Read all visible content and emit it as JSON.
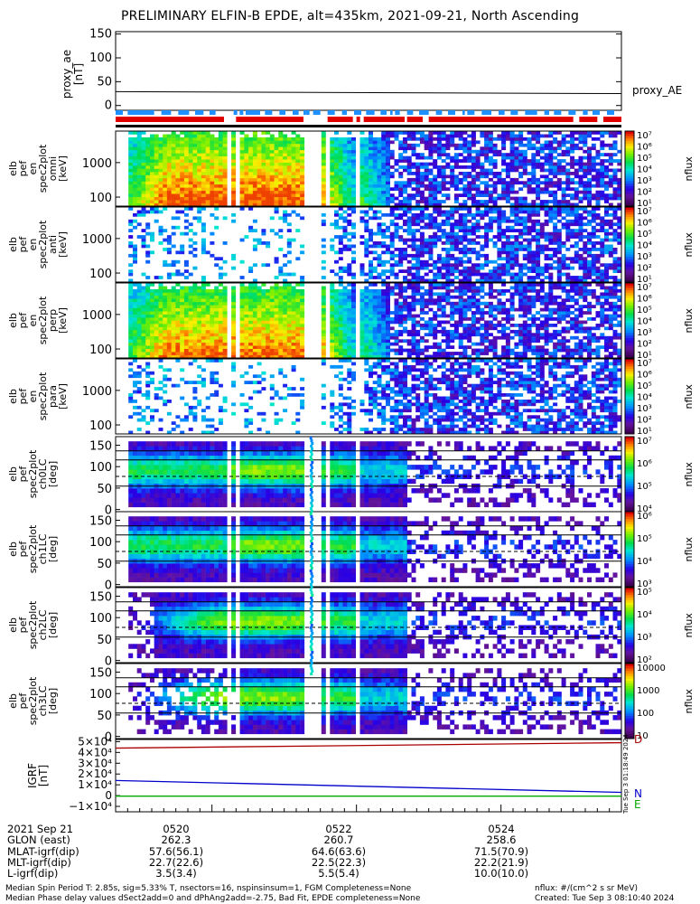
{
  "title": "PRELIMINARY ELFIN-B EPDE, alt=435km, 2021-09-21, North Ascending",
  "colors": {
    "frame": "#000000",
    "blue_bar": "#1e90ff",
    "red_bar": "#e00000",
    "mag_d": "#aa0000",
    "mag_n": "#0000cc",
    "mag_e": "#00aa00"
  },
  "panels": {
    "ae": {
      "ylabel": [
        "proxy_ae",
        "[nT]"
      ],
      "ticks": [
        "150",
        "100",
        "50",
        "0"
      ],
      "legend": "proxy_AE"
    },
    "energy_spec": [
      {
        "ylabel": [
          "elb",
          "pef",
          "en",
          "spec2plot",
          "omni",
          "[keV]"
        ],
        "ticks": [
          "1000",
          "100"
        ],
        "clabel": "nflux"
      },
      {
        "ylabel": [
          "elb",
          "pef",
          "en",
          "spec2plot",
          "anti",
          "[keV]"
        ],
        "ticks": [
          "1000",
          "100"
        ],
        "clabel": "nflux"
      },
      {
        "ylabel": [
          "elb",
          "pef",
          "en",
          "spec2plot",
          "perp",
          "[keV]"
        ],
        "ticks": [
          "1000",
          "100"
        ],
        "clabel": "nflux"
      },
      {
        "ylabel": [
          "elb",
          "pef",
          "en",
          "spec2plot",
          "para",
          "[keV]"
        ],
        "ticks": [
          "1000",
          "100"
        ],
        "clabel": "nflux"
      }
    ],
    "pitch_spec": [
      {
        "ylabel": [
          "elb",
          "pef",
          "spec2plot",
          "ch0LC",
          "[deg]"
        ],
        "ticks": [
          "150",
          "100",
          "50",
          "0"
        ],
        "clabel": "nflux"
      },
      {
        "ylabel": [
          "elb",
          "pef",
          "spec2plot",
          "ch1LC",
          "[deg]"
        ],
        "ticks": [
          "150",
          "100",
          "50",
          "0"
        ],
        "clabel": "nflux"
      },
      {
        "ylabel": [
          "elb",
          "pef",
          "spec2plot",
          "ch2LC",
          "[deg]"
        ],
        "ticks": [
          "150",
          "100",
          "50",
          "0"
        ],
        "clabel": "nflux"
      },
      {
        "ylabel": [
          "elb",
          "pef",
          "spec2plot",
          "ch3LC",
          "[deg]"
        ],
        "ticks": [
          "150",
          "100",
          "50",
          "0"
        ],
        "clabel": "nflux"
      }
    ],
    "mag": {
      "ylabel": [
        "IGRF",
        "[nT]"
      ],
      "ticks": [
        "5×10⁴",
        "4×10⁴",
        "3×10⁴",
        "2×10⁴",
        "1×10⁴",
        "0",
        "−1×10⁴"
      ],
      "legend": [
        "D",
        "N",
        "E"
      ]
    }
  },
  "colorbars": [
    {
      "labels": [
        "10⁷",
        "10⁶",
        "10⁵",
        "10⁴",
        "10³",
        "10²",
        "10¹"
      ]
    },
    {
      "labels": [
        "10⁷",
        "10⁶",
        "10⁵",
        "10⁴",
        "10³",
        "10²",
        "10¹"
      ]
    },
    {
      "labels": [
        "10⁷",
        "10⁶",
        "10⁵",
        "10⁴",
        "10³",
        "10²",
        "10¹"
      ]
    },
    {
      "labels": [
        "10⁷",
        "10⁶",
        "10⁵",
        "10⁴",
        "10³",
        "10²",
        "10¹"
      ]
    },
    {
      "labels": [
        "10⁷",
        "10⁶",
        "10⁵",
        "10⁴"
      ]
    },
    {
      "labels": [
        "10⁶",
        "10⁵",
        "10⁴",
        "10³"
      ]
    },
    {
      "labels": [
        "10⁵",
        "10⁴",
        "10³",
        "10²"
      ]
    },
    {
      "labels": [
        "10000",
        "1000",
        "100",
        "10"
      ]
    }
  ],
  "chart_data": {
    "type": "heatmap",
    "proxy_ae": {
      "x": [
        "05:18:40",
        "05:25:40"
      ],
      "y": [
        29,
        25
      ],
      "ylim": [
        -10,
        155
      ]
    },
    "igrf": {
      "ylim": [
        -15000,
        52000
      ],
      "D": {
        "x": [
          "05:18:40",
          "05:25:40"
        ],
        "y": [
          44000,
          49000
        ]
      },
      "N": {
        "x": [
          "05:18:40",
          "05:25:40"
        ],
        "y": [
          14000,
          3000
        ]
      },
      "E": {
        "x": [
          "05:18:40",
          "05:25:40"
        ],
        "y": [
          -500,
          -500
        ]
      }
    }
  },
  "table": {
    "row_labels": [
      "2021 Sep 21",
      "GLON (east)",
      "MLAT-igrf(dip)",
      "MLT-igrf(dip)",
      "L-igrf(dip)"
    ],
    "columns": [
      {
        "time": "0520",
        "glon": "262.3",
        "mlat": "57.6(56.1)",
        "mlt": "22.7(22.6)",
        "l": "3.5(3.4)"
      },
      {
        "time": "0522",
        "glon": "260.7",
        "mlat": "64.6(63.6)",
        "mlt": "22.5(22.3)",
        "l": "5.5(5.4)"
      },
      {
        "time": "0524",
        "glon": "258.6",
        "mlat": "71.5(70.9)",
        "mlt": "22.2(21.9)",
        "l": "10.0(10.0)"
      }
    ]
  },
  "footer": {
    "line1": "Median Spin Period T: 2.85s, sig=5.33% T, nsectors=16, nspinsinsum=1, FGM Completeness=None",
    "line2": "Median Phase delay values dSect2add=0 and dPhAng2add=-2.75, Bad Fit, EPDE completeness=None",
    "units": "nflux: #/(cm^2 s sr MeV)",
    "created": "Created: Tue Sep  3 08:10:40 2024",
    "stamp": "Tue Sep  3 01:18:49 2024"
  }
}
